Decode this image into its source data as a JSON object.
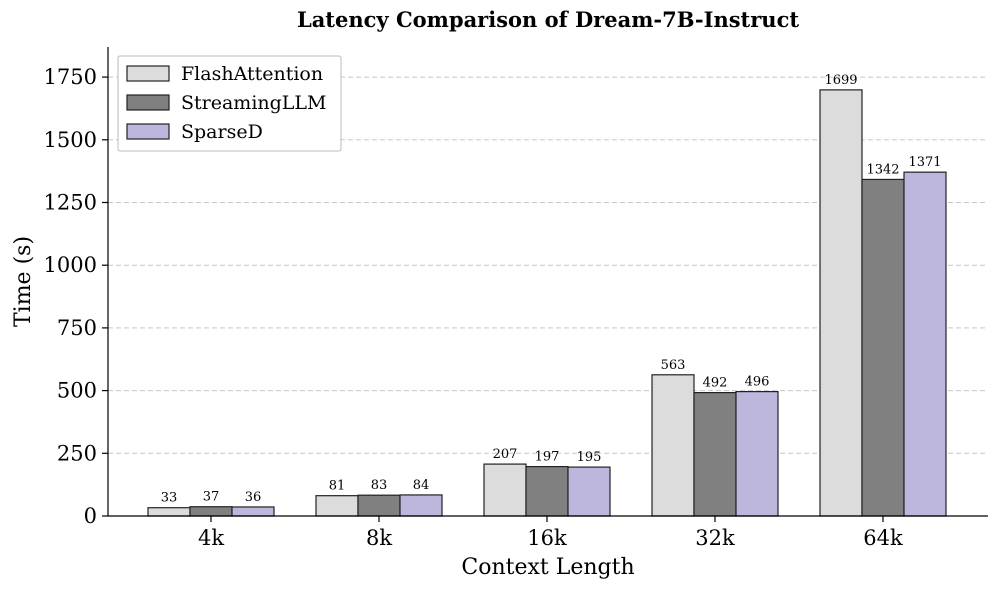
{
  "chart_data": {
    "type": "bar",
    "title": "Latency Comparison of Dream-7B-Instruct",
    "xlabel": "Context Length",
    "ylabel": "Time (s)",
    "categories": [
      "4k",
      "8k",
      "16k",
      "32k",
      "64k"
    ],
    "ylim": [
      0,
      1870
    ],
    "yticks": [
      0,
      250,
      500,
      750,
      1000,
      1250,
      1500,
      1750
    ],
    "ytick_labels": [
      "0",
      "250",
      "500",
      "750",
      "1000",
      "1250",
      "1500",
      "1750"
    ],
    "grid": "y-dashed",
    "legend_position": "top-left",
    "series": [
      {
        "name": "FlashAttention",
        "color": "#dcdcdc",
        "values": [
          33,
          81,
          207,
          563,
          1699
        ],
        "labels": [
          "33",
          "81",
          "207",
          "563",
          "1699"
        ]
      },
      {
        "name": "StreamingLLM",
        "color": "#808080",
        "values": [
          37,
          83,
          197,
          492,
          1342
        ],
        "labels": [
          "37",
          "83",
          "197",
          "492",
          "1342"
        ]
      },
      {
        "name": "SparseD",
        "color": "#bdb6dd",
        "values": [
          36,
          84,
          195,
          496,
          1371
        ],
        "labels": [
          "36",
          "84",
          "195",
          "496",
          "1371"
        ]
      }
    ]
  }
}
